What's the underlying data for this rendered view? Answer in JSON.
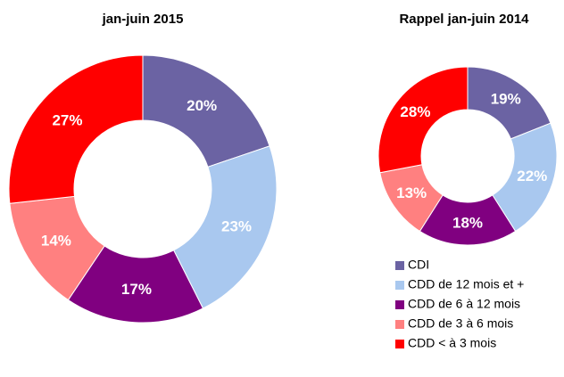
{
  "chart_data": [
    {
      "type": "donut",
      "title": "jan-juin 2015",
      "values": [
        20,
        23,
        17,
        14,
        27
      ],
      "value_labels": [
        "20%",
        "23%",
        "17%",
        "14%",
        "27%"
      ],
      "colors": [
        "#6b63a3",
        "#a9c8ef",
        "#800080",
        "#ff8080",
        "#ff0000"
      ]
    },
    {
      "type": "donut",
      "title": "Rappel jan-juin 2014",
      "values": [
        19,
        22,
        18,
        13,
        28
      ],
      "value_labels": [
        "19%",
        "22%",
        "18%",
        "13%",
        "28%"
      ],
      "colors": [
        "#6b63a3",
        "#a9c8ef",
        "#800080",
        "#ff8080",
        "#ff0000"
      ]
    }
  ],
  "legend": {
    "entries": [
      "CDI",
      "CDD de 12 mois et +",
      "CDD de 6 à 12 mois",
      "CDD de 3 à 6 mois",
      "CDD < à 3 mois"
    ],
    "colors": [
      "#6b63a3",
      "#a9c8ef",
      "#800080",
      "#ff8080",
      "#ff0000"
    ]
  }
}
